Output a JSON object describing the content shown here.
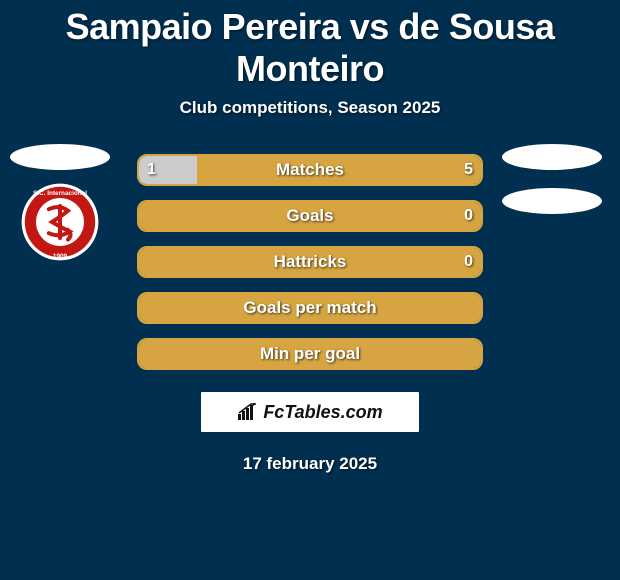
{
  "title": "Sampaio Pereira vs de Sousa Monteiro",
  "subtitle": "Club competitions, Season 2025",
  "date": "17 february 2025",
  "brand": "FcTables.com",
  "colors": {
    "background": "#002f4f",
    "bar_border": "#d6a542",
    "left_fill": "#cccccc",
    "right_fill": "#d6a542",
    "text": "#ffffff"
  },
  "left": {
    "flag_shape": "ellipse",
    "flag_color": "#ffffff",
    "club_crest": {
      "outer": "#ffffff",
      "ring": "#c21713",
      "ring_text": "#ffffff",
      "inner": "#ffffff",
      "mono": "#c21713"
    }
  },
  "right": {
    "flag_shape": "ellipse",
    "flag_color": "#ffffff",
    "club_crest": null
  },
  "bars": [
    {
      "label": "Matches",
      "left_val": "1",
      "right_val": "5",
      "left_pct": 17,
      "right_pct": 83
    },
    {
      "label": "Goals",
      "left_val": "",
      "right_val": "0",
      "left_pct": 0,
      "right_pct": 100
    },
    {
      "label": "Hattricks",
      "left_val": "",
      "right_val": "0",
      "left_pct": 0,
      "right_pct": 100
    },
    {
      "label": "Goals per match",
      "left_val": "",
      "right_val": "",
      "left_pct": 0,
      "right_pct": 100
    },
    {
      "label": "Min per goal",
      "left_val": "",
      "right_val": "",
      "left_pct": 0,
      "right_pct": 100
    }
  ]
}
